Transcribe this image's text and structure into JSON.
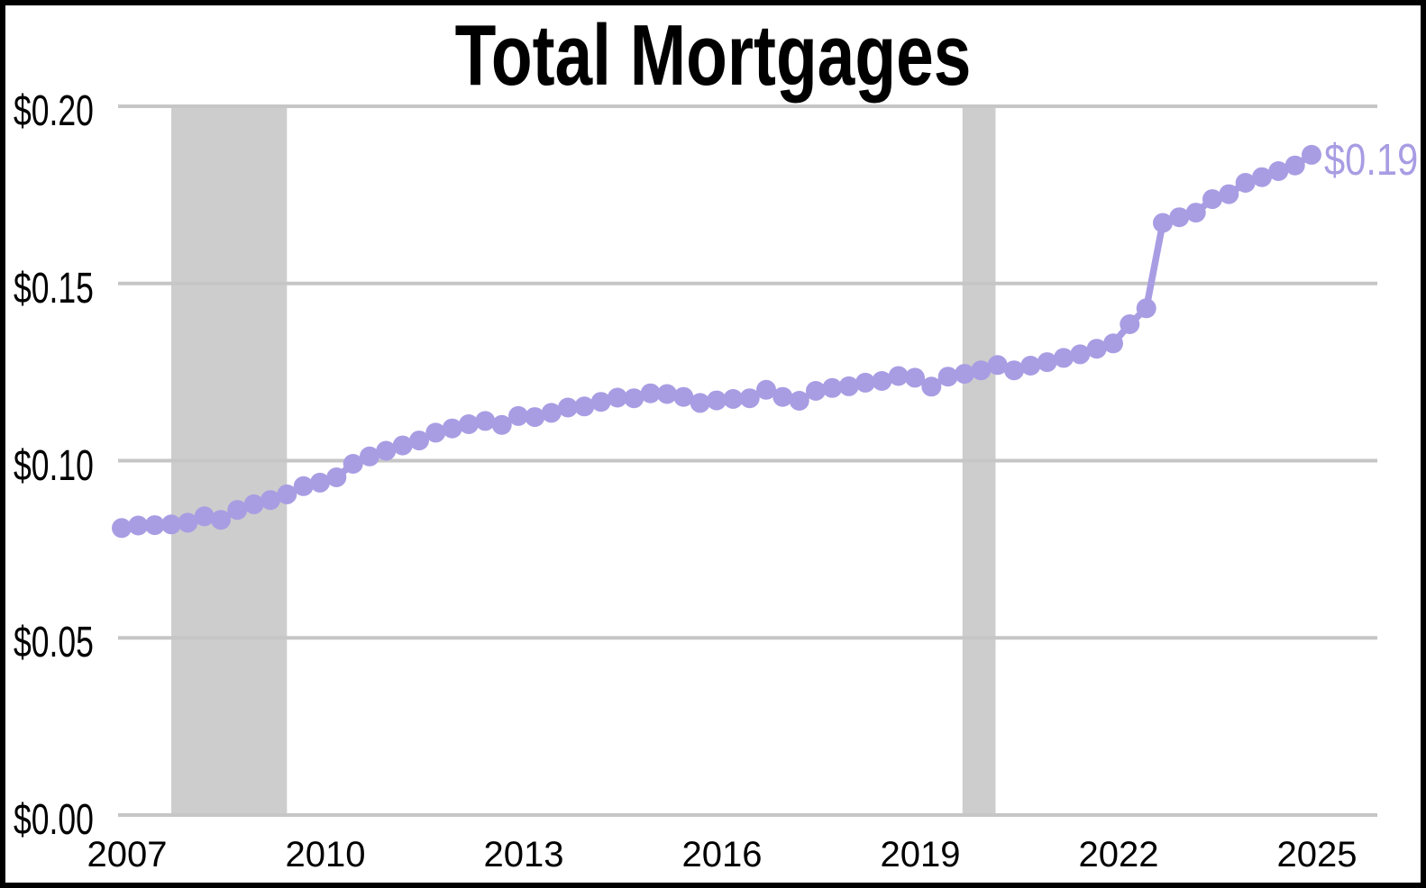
{
  "title": "Total Mortgages",
  "end_label": "$0.19",
  "colors": {
    "line": "#a89de3",
    "marker": "#a89de3",
    "end_label": "#a89de3",
    "gridline": "#c6c6c6",
    "recession_band": "#cdcdcd",
    "axis_text": "#000000",
    "background": "#ffffff",
    "border": "#000000"
  },
  "y_axis": {
    "ticks": [
      {
        "label": "$0.20",
        "value": 0.2
      },
      {
        "label": "$0.15",
        "value": 0.15
      },
      {
        "label": "$0.10",
        "value": 0.1
      },
      {
        "label": "$0.05",
        "value": 0.05
      },
      {
        "label": "$0.00",
        "value": 0.0
      }
    ]
  },
  "x_axis": {
    "ticks": [
      {
        "label": "2007",
        "year": 2007
      },
      {
        "label": "2010",
        "year": 2010
      },
      {
        "label": "2013",
        "year": 2013
      },
      {
        "label": "2016",
        "year": 2016
      },
      {
        "label": "2019",
        "year": 2019
      },
      {
        "label": "2022",
        "year": 2022
      },
      {
        "label": "2025",
        "year": 2025
      }
    ]
  },
  "chart_data": {
    "type": "line",
    "title": "Total Mortgages",
    "frequency": "quarterly",
    "start_period": "2007Q1",
    "end_period": "2025Q1",
    "start_year": 2007.0,
    "x_step_years": 0.25,
    "values": [
      0.081,
      0.0817,
      0.0818,
      0.082,
      0.0825,
      0.0843,
      0.0833,
      0.0861,
      0.0877,
      0.0889,
      0.0905,
      0.0928,
      0.0938,
      0.0953,
      0.0991,
      0.1012,
      0.1028,
      0.1043,
      0.1057,
      0.1079,
      0.1091,
      0.1103,
      0.1112,
      0.1101,
      0.1126,
      0.1123,
      0.1135,
      0.115,
      0.1153,
      0.1166,
      0.1178,
      0.1176,
      0.119,
      0.1188,
      0.118,
      0.1163,
      0.117,
      0.1174,
      0.1176,
      0.12,
      0.118,
      0.1169,
      0.1197,
      0.1205,
      0.121,
      0.122,
      0.1225,
      0.1239,
      0.1234,
      0.1209,
      0.1237,
      0.1245,
      0.1255,
      0.127,
      0.1255,
      0.1268,
      0.1278,
      0.129,
      0.13,
      0.1316,
      0.1331,
      0.1385,
      0.143,
      0.1671,
      0.1687,
      0.17,
      0.1738,
      0.1752,
      0.1784,
      0.18,
      0.1817,
      0.1833,
      0.1863
    ],
    "ylim": [
      0.0,
      0.2
    ],
    "y_ticks": [
      0.0,
      0.05,
      0.1,
      0.15,
      0.2
    ],
    "y_tick_format": "$0.00",
    "x_tick_years": [
      2007,
      2010,
      2013,
      2016,
      2019,
      2022,
      2025
    ],
    "recession_bands": [
      {
        "start": 2007.75,
        "end": 2009.5
      },
      {
        "start": 2019.72,
        "end": 2020.22
      }
    ],
    "end_point_label": "$0.19",
    "grid": true,
    "legend": "none",
    "marker": "circle"
  }
}
